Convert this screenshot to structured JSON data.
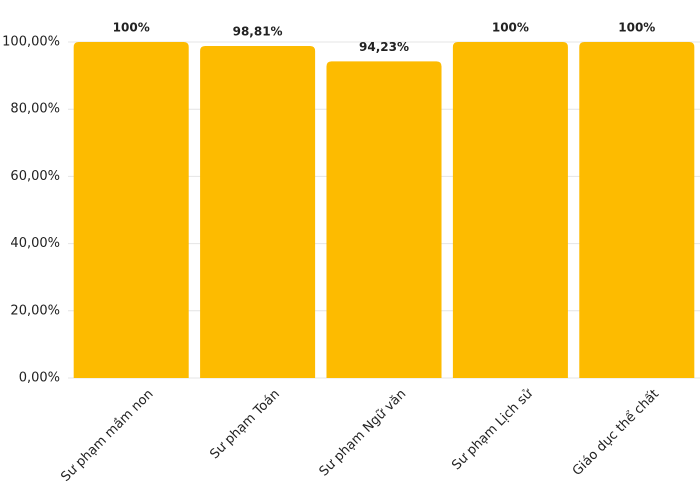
{
  "chart_data": {
    "type": "bar",
    "categories": [
      "Sư phạm mầm non",
      "Sư phạm Toán",
      "Sư phạm Ngữ văn",
      "Sư phạm Lịch sử",
      "Giáo dục thể chất"
    ],
    "values": [
      100,
      98.81,
      94.23,
      100,
      100
    ],
    "value_labels": [
      "100%",
      "98,81%",
      "94,23%",
      "100%",
      "100%"
    ],
    "color": "#fdbb00",
    "ylim": [
      0,
      100
    ],
    "yticks": [
      {
        "value": 0,
        "label": "0,00%"
      },
      {
        "value": 20,
        "label": "20,00%"
      },
      {
        "value": 40,
        "label": "40,00%"
      },
      {
        "value": 60,
        "label": "60,00%"
      },
      {
        "value": 80,
        "label": "80,00%"
      },
      {
        "value": 100,
        "label": "100,00%"
      }
    ],
    "grid": true
  }
}
